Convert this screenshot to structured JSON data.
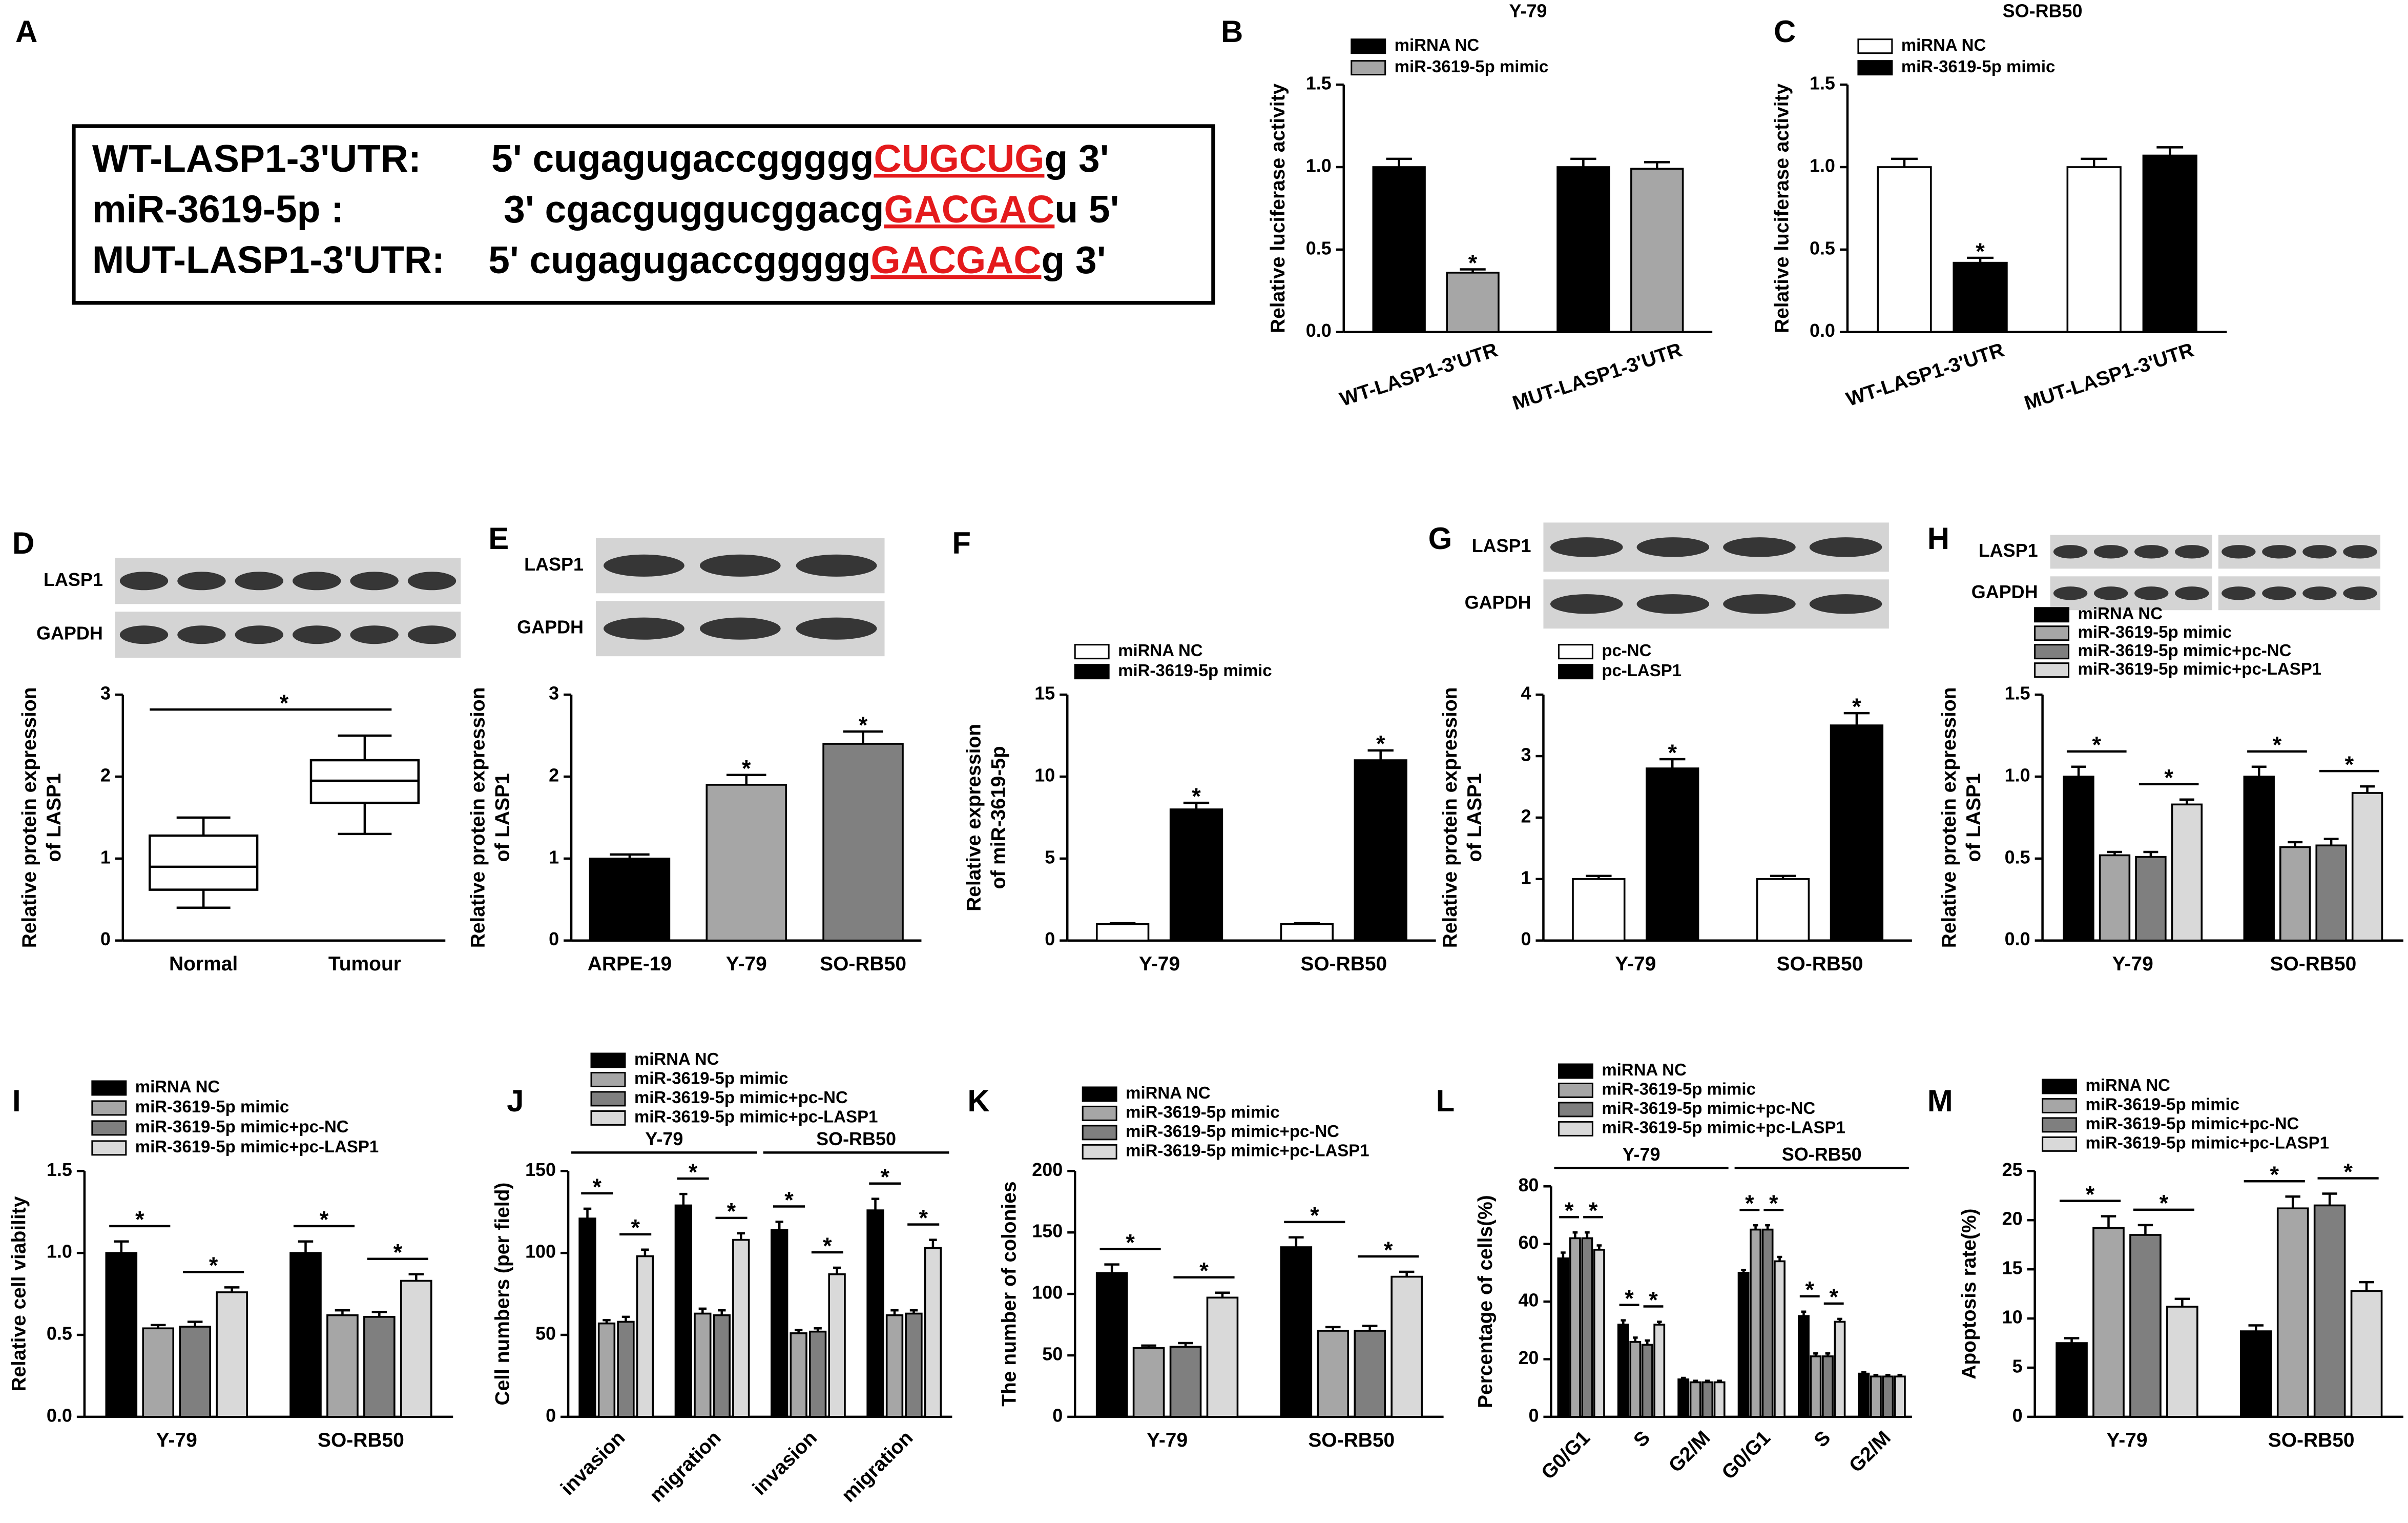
{
  "panel_a": {
    "label": "A",
    "site_color": "#e41a1c",
    "lines": [
      {
        "name": "WT-LASP1-3'UTR:",
        "sequence": "5' cugagugaccggggg",
        "site": "CUGCUG",
        "end": "g 3'"
      },
      {
        "name": "miR-3619-5p :",
        "sequence": "3' cgacguggucggacg",
        "site": "GACGAC",
        "end": "u 5'"
      },
      {
        "name": "MUT-LASP1-3'UTR:",
        "sequence": "5' cugagugaccggggg",
        "site": "GACGAC",
        "end": "g 3'"
      }
    ]
  },
  "chart_data": [
    {
      "type": "bar",
      "label": "B",
      "title": "Y-79",
      "ylabel": [
        "Relative luciferase activity"
      ],
      "categories": [
        "WT-LASP1-3'UTR",
        "MUT-LASP1-3'UTR"
      ],
      "series": [
        {
          "name": "miRNA NC",
          "color": "#000000",
          "values": [
            1.0,
            1.0
          ],
          "errors": [
            0.05,
            0.05
          ]
        },
        {
          "name": "miR-3619-5p mimic",
          "color": "#a6a6a6",
          "values": [
            0.36,
            0.99
          ],
          "errors": [
            0.02,
            0.04
          ],
          "stars": [
            "*",
            null
          ]
        }
      ],
      "ylim": [
        0,
        1.5
      ],
      "yticks": [
        {
          "value": 0,
          "label": "0.0"
        },
        0.5,
        {
          "value": 1,
          "label": "1.0"
        },
        1.5
      ]
    },
    {
      "type": "bar",
      "label": "C",
      "title": "SO-RB50",
      "ylabel": [
        "Relative luciferase activity"
      ],
      "categories": [
        "WT-LASP1-3'UTR",
        "MUT-LASP1-3'UTR"
      ],
      "series": [
        {
          "name": "miRNA NC",
          "color": "#ffffff",
          "values": [
            1.0,
            1.0
          ],
          "errors": [
            0.05,
            0.05
          ]
        },
        {
          "name": "miR-3619-5p mimic",
          "color": "#000000",
          "values": [
            0.42,
            1.07
          ],
          "errors": [
            0.03,
            0.05
          ],
          "stars": [
            "*",
            null
          ]
        }
      ],
      "ylim": [
        0,
        1.5
      ],
      "yticks": [
        {
          "value": 0,
          "label": "0.0"
        },
        0.5,
        {
          "value": 1,
          "label": "1.0"
        },
        1.5
      ]
    },
    {
      "type": "box",
      "label": "D",
      "blot_labels": [
        "LASP1",
        "GAPDH"
      ],
      "ylabel": [
        "Relative protein expression",
        "of LASP1"
      ],
      "categories": [
        "Normal",
        "Tumour"
      ],
      "boxes": [
        {
          "whislo": 0.4,
          "q1": 0.62,
          "med": 0.9,
          "q3": 1.28,
          "whishi": 1.5
        },
        {
          "whislo": 1.3,
          "q1": 1.68,
          "med": 1.95,
          "q3": 2.2,
          "whishi": 2.5
        }
      ],
      "significance": "*",
      "ylim": [
        0,
        3
      ],
      "yticks": [
        0,
        1,
        2,
        3
      ]
    },
    {
      "type": "bar",
      "label": "E",
      "blot_labels": [
        "LASP1",
        "GAPDH"
      ],
      "ylabel": [
        "Relative protein expression",
        "of LASP1"
      ],
      "categories": [
        "ARPE-19",
        "Y-79",
        "SO-RB50"
      ],
      "values": [
        1.0,
        1.9,
        2.4
      ],
      "errors": [
        0.05,
        0.12,
        0.15
      ],
      "colors": [
        "#000000",
        "#a6a6a6",
        "#808080"
      ],
      "stars": [
        null,
        "*",
        "*"
      ],
      "ylim": [
        0,
        3
      ],
      "yticks": [
        0,
        1,
        2,
        3
      ]
    },
    {
      "type": "bar",
      "label": "F",
      "ylabel": [
        "Relative expression",
        "of miR-3619-5p"
      ],
      "categories": [
        "Y-79",
        "SO-RB50"
      ],
      "series": [
        {
          "name": "miRNA NC",
          "color": "#ffffff",
          "values": [
            1.0,
            1.0
          ],
          "errors": [
            0.05,
            0.05
          ]
        },
        {
          "name": "miR-3619-5p mimic",
          "color": "#000000",
          "values": [
            8.0,
            11.0
          ],
          "errors": [
            0.4,
            0.6
          ],
          "stars": [
            "*",
            "*"
          ]
        }
      ],
      "ylim": [
        0,
        15
      ],
      "yticks": [
        0,
        5,
        10,
        15
      ]
    },
    {
      "type": "bar",
      "label": "G",
      "blot_labels": [
        "LASP1",
        "GAPDH"
      ],
      "ylabel": [
        "Relative protein expression",
        "of LASP1"
      ],
      "categories": [
        "Y-79",
        "SO-RB50"
      ],
      "series": [
        {
          "name": "pc-NC",
          "color": "#ffffff",
          "values": [
            1.0,
            1.0
          ],
          "errors": [
            0.05,
            0.05
          ]
        },
        {
          "name": "pc-LASP1",
          "color": "#000000",
          "values": [
            2.8,
            3.5
          ],
          "errors": [
            0.15,
            0.2
          ],
          "stars": [
            "*",
            "*"
          ]
        }
      ],
      "ylim": [
        0,
        4
      ],
      "yticks": [
        0,
        1,
        2,
        3,
        4
      ]
    },
    {
      "type": "bar",
      "label": "H",
      "blot_labels": [
        "LASP1",
        "GAPDH"
      ],
      "ylabel": [
        "Relative protein expression",
        "of LASP1"
      ],
      "bracket": true,
      "categories": [
        "Y-79",
        "SO-RB50"
      ],
      "series": [
        {
          "name": "miRNA NC",
          "color": "#000000",
          "values": [
            1.0,
            1.0
          ],
          "errors": [
            0.06,
            0.06
          ]
        },
        {
          "name": "miR-3619-5p mimic",
          "color": "#a6a6a6",
          "values": [
            0.52,
            0.57
          ],
          "errors": [
            0.02,
            0.03
          ],
          "stars": [
            "*",
            "*"
          ]
        },
        {
          "name": "miR-3619-5p mimic+pc-NC",
          "color": "#7f7f7f",
          "values": [
            0.51,
            0.58
          ],
          "errors": [
            0.03,
            0.04
          ]
        },
        {
          "name": "miR-3619-5p mimic+pc-LASP1",
          "color": "#d9d9d9",
          "values": [
            0.83,
            0.9
          ],
          "errors": [
            0.03,
            0.04
          ],
          "stars": [
            "*",
            "*"
          ]
        }
      ],
      "ylim": [
        0,
        1.5
      ],
      "yticks": [
        {
          "value": 0,
          "label": "0.0"
        },
        0.5,
        {
          "value": 1,
          "label": "1.0"
        },
        1.5
      ]
    },
    {
      "type": "bar",
      "label": "I",
      "ylabel": [
        "Relative cell viability"
      ],
      "bracket": true,
      "categories": [
        "Y-79",
        "SO-RB50"
      ],
      "series": [
        {
          "name": "miRNA NC",
          "color": "#000000",
          "values": [
            1.0,
            1.0
          ],
          "errors": [
            0.07,
            0.07
          ]
        },
        {
          "name": "miR-3619-5p mimic",
          "color": "#a6a6a6",
          "values": [
            0.54,
            0.62
          ],
          "errors": [
            0.02,
            0.03
          ],
          "stars": [
            "*",
            "*"
          ]
        },
        {
          "name": "miR-3619-5p mimic+pc-NC",
          "color": "#7f7f7f",
          "values": [
            0.55,
            0.61
          ],
          "errors": [
            0.03,
            0.03
          ]
        },
        {
          "name": "miR-3619-5p mimic+pc-LASP1",
          "color": "#d9d9d9",
          "values": [
            0.76,
            0.83
          ],
          "errors": [
            0.03,
            0.04
          ],
          "stars": [
            "*",
            "*"
          ]
        }
      ],
      "ylim": [
        0,
        1.5
      ],
      "yticks": [
        {
          "value": 0,
          "label": "0.0"
        },
        0.5,
        {
          "value": 1,
          "label": "1.0"
        },
        1.5
      ]
    },
    {
      "type": "bar",
      "label": "J",
      "ylabel": [
        "Cell numbers (per field)"
      ],
      "bracket": true,
      "groups": [
        {
          "name": "Y-79",
          "categories": [
            "invasion",
            "migration"
          ]
        },
        {
          "name": "SO-RB50",
          "categories": [
            "invasion",
            "migration"
          ]
        }
      ],
      "series": [
        {
          "name": "miRNA NC",
          "color": "#000000",
          "values": [
            121,
            129,
            114,
            126
          ],
          "errors": [
            6,
            7,
            5,
            7
          ]
        },
        {
          "name": "miR-3619-5p mimic",
          "color": "#a6a6a6",
          "values": [
            57,
            63,
            51,
            62
          ],
          "errors": [
            2,
            3,
            2,
            3
          ],
          "stars": [
            "*",
            "*",
            "*",
            "*"
          ]
        },
        {
          "name": "miR-3619-5p mimic+pc-NC",
          "color": "#7f7f7f",
          "values": [
            58,
            62,
            52,
            63
          ],
          "errors": [
            3,
            3,
            2,
            2
          ]
        },
        {
          "name": "miR-3619-5p mimic+pc-LASP1",
          "color": "#d9d9d9",
          "values": [
            98,
            108,
            87,
            103
          ],
          "errors": [
            4,
            4,
            4,
            5
          ],
          "stars": [
            "*",
            "*",
            "*",
            "*"
          ]
        }
      ],
      "ylim": [
        0,
        150
      ],
      "yticks": [
        0,
        50,
        100,
        150
      ]
    },
    {
      "type": "bar",
      "label": "K",
      "ylabel": [
        "The number of colonies"
      ],
      "bracket": true,
      "categories": [
        "Y-79",
        "SO-RB50"
      ],
      "series": [
        {
          "name": "miRNA NC",
          "color": "#000000",
          "values": [
            117,
            138
          ],
          "errors": [
            7,
            8
          ]
        },
        {
          "name": "miR-3619-5p mimic",
          "color": "#a6a6a6",
          "values": [
            56,
            70
          ],
          "errors": [
            2,
            3
          ],
          "stars": [
            "*",
            "*"
          ]
        },
        {
          "name": "miR-3619-5p mimic+pc-NC",
          "color": "#7f7f7f",
          "values": [
            57,
            70
          ],
          "errors": [
            3,
            4
          ]
        },
        {
          "name": "miR-3619-5p mimic+pc-LASP1",
          "color": "#d9d9d9",
          "values": [
            97,
            114
          ],
          "errors": [
            4,
            4
          ],
          "stars": [
            "*",
            "*"
          ]
        }
      ],
      "ylim": [
        0,
        200
      ],
      "yticks": [
        0,
        50,
        100,
        150,
        200
      ]
    },
    {
      "type": "bar",
      "label": "L",
      "ylabel": [
        "Percentage of cells(%)"
      ],
      "bracket": true,
      "groups": [
        {
          "name": "Y-79",
          "categories": [
            "G0/G1",
            "S",
            "G2/M"
          ]
        },
        {
          "name": "SO-RB50",
          "categories": [
            "G0/G1",
            "S",
            "G2/M"
          ]
        }
      ],
      "series": [
        {
          "name": "miRNA NC",
          "color": "#000000",
          "values": [
            55,
            32,
            13,
            50,
            35,
            15
          ],
          "errors": [
            2,
            1.5,
            0.5,
            1,
            1.5,
            0.5
          ]
        },
        {
          "name": "miR-3619-5p mimic",
          "color": "#a6a6a6",
          "values": [
            62,
            26,
            12,
            65,
            21,
            14
          ],
          "errors": [
            2,
            1.5,
            0.5,
            1.5,
            1,
            0.5
          ],
          "stars": [
            "*",
            "*",
            null,
            "*",
            "*",
            null
          ]
        },
        {
          "name": "miR-3619-5p mimic+pc-NC",
          "color": "#7f7f7f",
          "values": [
            62,
            25,
            12,
            65,
            21,
            14
          ],
          "errors": [
            2,
            1.5,
            0.5,
            1.5,
            1,
            0.5
          ]
        },
        {
          "name": "miR-3619-5p mimic+pc-LASP1",
          "color": "#d9d9d9",
          "values": [
            58,
            32,
            12,
            54,
            33,
            14
          ],
          "errors": [
            1.5,
            1,
            0.5,
            1.5,
            1,
            0.5
          ],
          "stars": [
            "*",
            "*",
            null,
            "*",
            "*",
            null
          ]
        }
      ],
      "ylim": [
        0,
        80
      ],
      "yticks": [
        0,
        20,
        40,
        60,
        80
      ]
    },
    {
      "type": "bar",
      "label": "M",
      "ylabel": [
        "Apoptosis rate(%)"
      ],
      "bracket": true,
      "categories": [
        "Y-79",
        "SO-RB50"
      ],
      "series": [
        {
          "name": "miRNA NC",
          "color": "#000000",
          "values": [
            7.5,
            8.7
          ],
          "errors": [
            0.5,
            0.6
          ]
        },
        {
          "name": "miR-3619-5p mimic",
          "color": "#a6a6a6",
          "values": [
            19.2,
            21.2
          ],
          "errors": [
            1.2,
            1.2
          ],
          "stars": [
            "*",
            "*"
          ]
        },
        {
          "name": "miR-3619-5p mimic+pc-NC",
          "color": "#7f7f7f",
          "values": [
            18.5,
            21.5
          ],
          "errors": [
            1.0,
            1.2
          ]
        },
        {
          "name": "miR-3619-5p mimic+pc-LASP1",
          "color": "#d9d9d9",
          "values": [
            11.2,
            12.8
          ],
          "errors": [
            0.8,
            0.9
          ],
          "stars": [
            "*",
            "*"
          ]
        }
      ],
      "ylim": [
        0,
        25
      ],
      "yticks": [
        0,
        5,
        10,
        15,
        20,
        25
      ]
    }
  ]
}
